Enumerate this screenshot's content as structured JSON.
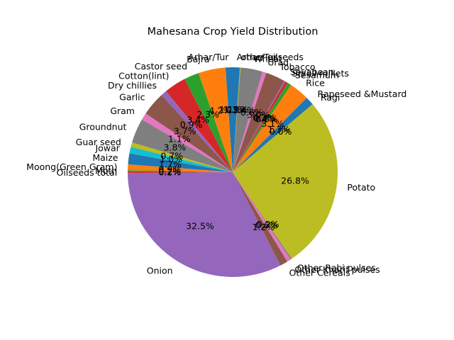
{
  "chart_data": {
    "type": "pie",
    "title": "Mahesana Crop Yield Distribution",
    "start_angle_deg": 90,
    "direction": "counterclockwise",
    "percent_format": "%1.1f%%",
    "slices": [
      {
        "label": "Arhar/Tur",
        "value": 1.1,
        "color": "#1f77b4"
      },
      {
        "label": "Bajra",
        "value": 4.2,
        "color": "#ff7f0e"
      },
      {
        "label": "Castor seed",
        "value": 2.3,
        "color": "#2ca02c"
      },
      {
        "label": "Cotton(lint)",
        "value": 3.4,
        "color": "#d62728"
      },
      {
        "label": "Dry chillies",
        "value": 0.9,
        "color": "#9467bd"
      },
      {
        "label": "Garlic",
        "value": 3.7,
        "color": "#8c564b"
      },
      {
        "label": "Gram",
        "value": 1.1,
        "color": "#e377c2"
      },
      {
        "label": "Groundnut",
        "value": 3.8,
        "color": "#7f7f7f"
      },
      {
        "label": "Guar seed",
        "value": 0.7,
        "color": "#bcbd22"
      },
      {
        "label": "Jowar",
        "value": 1.0,
        "color": "#17becf"
      },
      {
        "label": "Maize",
        "value": 1.7,
        "color": "#1f77b4"
      },
      {
        "label": "Moong(Green Gram)",
        "value": 0.9,
        "color": "#ff7f0e"
      },
      {
        "label": "Moth",
        "value": 0.2,
        "color": "#2ca02c"
      },
      {
        "label": "Oilseeds total",
        "value": 0.2,
        "color": "#d62728"
      },
      {
        "label": "Onion",
        "value": 32.5,
        "color": "#9467bd"
      },
      {
        "label": "Other Cereals",
        "value": 1.2,
        "color": "#8c564b"
      },
      {
        "label": "Other Kharif pulses",
        "value": 0.6,
        "color": "#e377c2"
      },
      {
        "label": "Other Rabi pulses",
        "value": 0.2,
        "color": "#7f7f7f"
      },
      {
        "label": "Potato",
        "value": 26.8,
        "color": "#bcbd22"
      },
      {
        "label": "Ragi",
        "value": 0.0,
        "color": "#17becf"
      },
      {
        "label": "Rapeseed &Mustard",
        "value": 1.3,
        "color": "#1f77b4"
      },
      {
        "label": "Rice",
        "value": 3.1,
        "color": "#ff7f0e"
      },
      {
        "label": "Sesamum",
        "value": 0.6,
        "color": "#2ca02c"
      },
      {
        "label": "Small millets",
        "value": 0.4,
        "color": "#d62728"
      },
      {
        "label": "Soyabean",
        "value": 0.2,
        "color": "#9467bd"
      },
      {
        "label": "Tobacco",
        "value": 3.0,
        "color": "#8c564b"
      },
      {
        "label": "Urad",
        "value": 0.6,
        "color": "#e377c2"
      },
      {
        "label": "Wheat",
        "value": 3.4,
        "color": "#7f7f7f"
      },
      {
        "label": "other oilseeds",
        "value": 0.1,
        "color": "#bcbd22"
      },
      {
        "label": "Arhar/Tur",
        "value": 1.1,
        "color": "#1f77b4"
      }
    ]
  }
}
